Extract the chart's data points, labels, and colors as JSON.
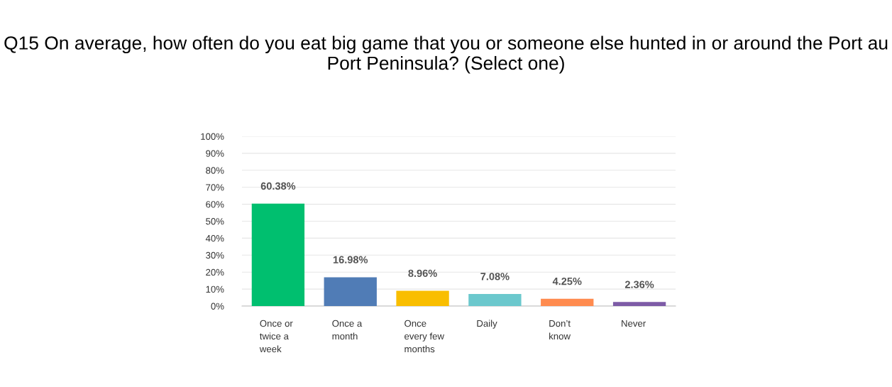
{
  "chart_data": {
    "type": "bar",
    "title": "Q15 On average, how often do you eat big game that you or someone else hunted in or around the Port au Port Peninsula? (Select one)",
    "categories": [
      "Once or\ntwice a\nweek",
      "Once a\nmonth",
      "Once\nevery few\nmonths",
      "Daily",
      "Don’t\nknow",
      "Never"
    ],
    "values": [
      60.38,
      16.98,
      8.96,
      7.08,
      4.25,
      2.36
    ],
    "colors": [
      "#00bf6f",
      "#507cb6",
      "#f9be00",
      "#6bc8cd",
      "#ff8b4f",
      "#7d5ba6"
    ],
    "value_labels": [
      "60.38%",
      "16.98%",
      "8.96%",
      "7.08%",
      "4.25%",
      "2.36%"
    ],
    "ylim": [
      0,
      100
    ],
    "yticks": [
      {
        "value": 0,
        "label": "0%"
      },
      {
        "value": 10,
        "label": "10%"
      },
      {
        "value": 20,
        "label": "20%"
      },
      {
        "value": 30,
        "label": "30%"
      },
      {
        "value": 40,
        "label": "40%"
      },
      {
        "value": 50,
        "label": "50%"
      },
      {
        "value": 60,
        "label": "60%"
      },
      {
        "value": 70,
        "label": "70%"
      },
      {
        "value": 80,
        "label": "80%"
      },
      {
        "value": 90,
        "label": "90%"
      },
      {
        "value": 100,
        "label": "100%"
      }
    ],
    "grid": "y",
    "legend": false
  }
}
